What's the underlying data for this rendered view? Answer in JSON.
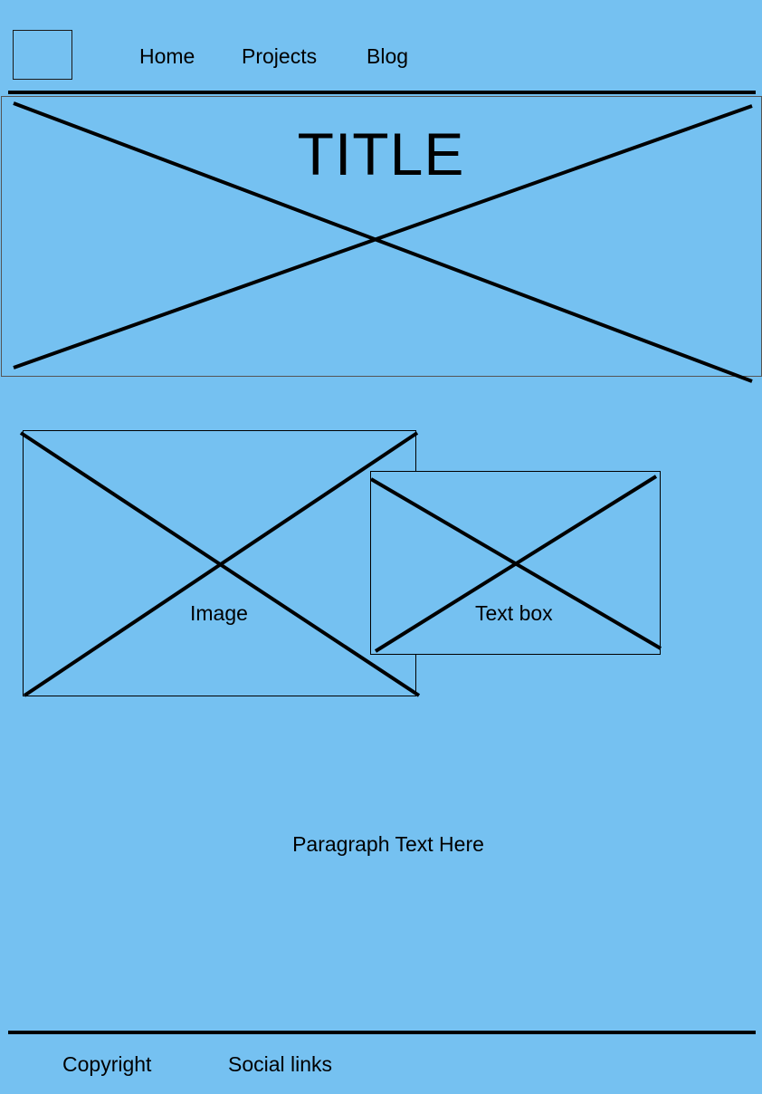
{
  "header": {
    "logo_icon": "logo-placeholder-icon",
    "nav": [
      {
        "label": "Home"
      },
      {
        "label": "Projects"
      },
      {
        "label": "Blog"
      }
    ]
  },
  "hero": {
    "title": "TITLE",
    "image_icon": "image-placeholder-cross-icon"
  },
  "content": {
    "image_caption": "Image",
    "textbox_caption": "Text box",
    "paragraph": "Paragraph Text Here"
  },
  "footer": {
    "copyright": "Copyright",
    "social": "Social links"
  }
}
